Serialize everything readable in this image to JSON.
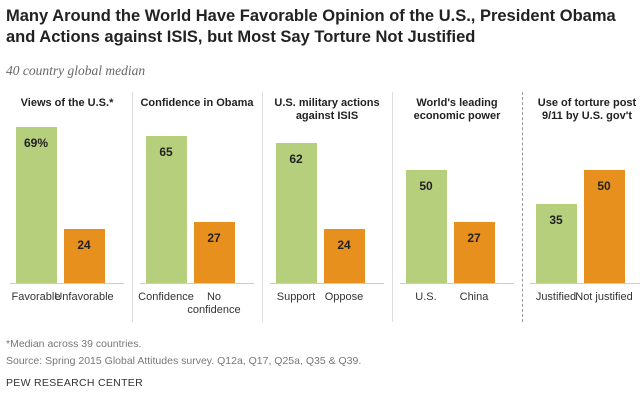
{
  "title": "Many Around the World Have Favorable Opinion of the U.S., President Obama and Actions against ISIS, but Most Say Torture Not Justified",
  "subtitle": "40 country global median",
  "note": "*Median across 39 countries.",
  "source": "Source: Spring 2015 Global Attitudes survey. Q12a, Q17, Q25a, Q35 & Q39.",
  "credit": "PEW RESEARCH CENTER",
  "chart_data": [
    {
      "type": "bar",
      "title": "Views of the U.S.*",
      "categories": [
        "Favorable",
        "Unfavorable"
      ],
      "values": [
        69,
        24
      ],
      "value_labels": [
        "69%",
        "24"
      ],
      "colors": [
        "#b5cf7d",
        "#e8901d"
      ]
    },
    {
      "type": "bar",
      "title": "Confidence in Obama",
      "categories": [
        "Confidence",
        "No confidence"
      ],
      "values": [
        65,
        27
      ],
      "colors": [
        "#b5cf7d",
        "#e8901d"
      ]
    },
    {
      "type": "bar",
      "title": "U.S. military actions against ISIS",
      "categories": [
        "Support",
        "Oppose"
      ],
      "values": [
        62,
        24
      ],
      "colors": [
        "#b5cf7d",
        "#e8901d"
      ]
    },
    {
      "type": "bar",
      "title": "World's leading economic power",
      "categories": [
        "U.S.",
        "China"
      ],
      "values": [
        50,
        27
      ],
      "colors": [
        "#b5cf7d",
        "#e8901d"
      ]
    },
    {
      "type": "bar",
      "title": "Use of torture post 9/11 by U.S. gov't",
      "categories": [
        "Justified",
        "Not justified"
      ],
      "values": [
        35,
        50
      ],
      "colors": [
        "#b5cf7d",
        "#e8901d"
      ]
    }
  ]
}
